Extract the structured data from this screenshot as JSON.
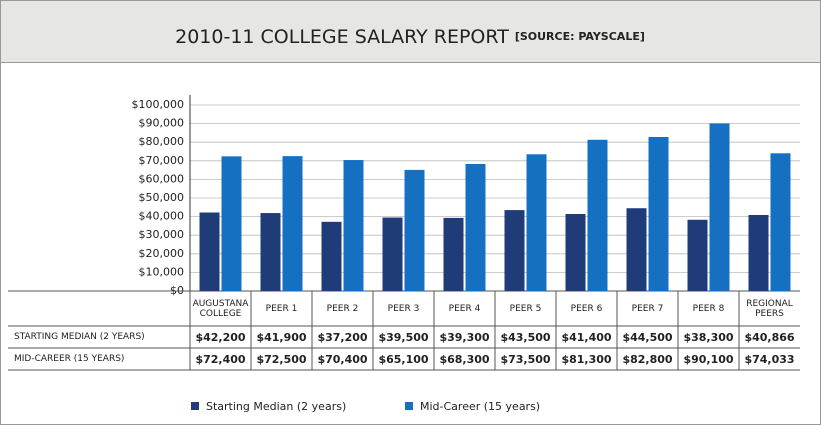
{
  "chart_data": {
    "type": "bar",
    "title": "2010-11 COLLEGE SALARY REPORT",
    "subtitle": "[SOURCE: PAYSCALE]",
    "categories": [
      "AUGUSTANA COLLEGE",
      "PEER 1",
      "PEER 2",
      "PEER 3",
      "PEER 4",
      "PEER 5",
      "PEER 6",
      "PEER 7",
      "PEER 8",
      "REGIONAL PEERS"
    ],
    "series": [
      {
        "name": "Starting Median (2 years)",
        "table_label": "STARTING MEDIAN (2 YEARS)",
        "color": "#1f3b78",
        "values": [
          42200,
          41900,
          37200,
          39500,
          39300,
          43500,
          41400,
          44500,
          38300,
          40866
        ],
        "value_labels": [
          "$42,200",
          "$41,900",
          "$37,200",
          "$39,500",
          "$39,300",
          "$43,500",
          "$41,400",
          "$44,500",
          "$38,300",
          "$40,866"
        ]
      },
      {
        "name": "Mid-Career (15 years)",
        "table_label": "MID-CAREER (15 YEARS)",
        "color": "#1570c1",
        "values": [
          72400,
          72500,
          70400,
          65100,
          68300,
          73500,
          81300,
          82800,
          90100,
          74033
        ],
        "value_labels": [
          "$72,400",
          "$72,500",
          "$70,400",
          "$65,100",
          "$68,300",
          "$73,500",
          "$81,300",
          "$82,800",
          "$90,100",
          "$74,033"
        ]
      }
    ],
    "ylim": [
      0,
      100000
    ],
    "yticks": [
      {
        "value": 0,
        "label": "$0"
      },
      {
        "value": 10000,
        "label": "$10,000"
      },
      {
        "value": 20000,
        "label": "$20,000"
      },
      {
        "value": 30000,
        "label": "$30,000"
      },
      {
        "value": 40000,
        "label": "$40,000"
      },
      {
        "value": 50000,
        "label": "$50,000"
      },
      {
        "value": 60000,
        "label": "$60,000"
      },
      {
        "value": 70000,
        "label": "$70,000"
      },
      {
        "value": 80000,
        "label": "$80,000"
      },
      {
        "value": 90000,
        "label": "$90,000"
      },
      {
        "value": 100000,
        "label": "$100,000"
      }
    ],
    "grid": true
  }
}
